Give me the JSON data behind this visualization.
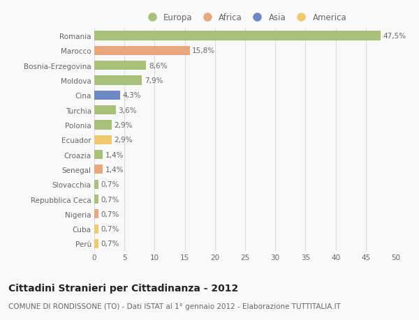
{
  "categories": [
    "Romania",
    "Marocco",
    "Bosnia-Erzegovina",
    "Moldova",
    "Cina",
    "Turchia",
    "Polonia",
    "Ecuador",
    "Croazia",
    "Senegal",
    "Slovacchia",
    "Repubblica Ceca",
    "Nigeria",
    "Cuba",
    "Perù"
  ],
  "values": [
    47.5,
    15.8,
    8.6,
    7.9,
    4.3,
    3.6,
    2.9,
    2.9,
    1.4,
    1.4,
    0.7,
    0.7,
    0.7,
    0.7,
    0.7
  ],
  "labels": [
    "47,5%",
    "15,8%",
    "8,6%",
    "7,9%",
    "4,3%",
    "3,6%",
    "2,9%",
    "2,9%",
    "1,4%",
    "1,4%",
    "0,7%",
    "0,7%",
    "0,7%",
    "0,7%",
    "0,7%"
  ],
  "colors": [
    "#a8c07a",
    "#e8a87c",
    "#a8c07a",
    "#a8c07a",
    "#6b88c4",
    "#a8c07a",
    "#a8c07a",
    "#f0c96e",
    "#a8c07a",
    "#e8a87c",
    "#a8c07a",
    "#a8c07a",
    "#e8a87c",
    "#f0c96e",
    "#f0c96e"
  ],
  "legend_labels": [
    "Europa",
    "Africa",
    "Asia",
    "America"
  ],
  "legend_colors": [
    "#a8c07a",
    "#e8a87c",
    "#6b88c4",
    "#f0c96e"
  ],
  "xlim": [
    0,
    50
  ],
  "xticks": [
    0,
    5,
    10,
    15,
    20,
    25,
    30,
    35,
    40,
    45,
    50
  ],
  "title": "Cittadini Stranieri per Cittadinanza - 2012",
  "subtitle": "COMUNE DI RONDISSONE (TO) - Dati ISTAT al 1° gennaio 2012 - Elaborazione TUTTITALIA.IT",
  "background_color": "#f9f9f9",
  "grid_color": "#d8d8d8",
  "text_color": "#666666",
  "title_color": "#222222",
  "label_fontsize": 7.5,
  "tick_fontsize": 7.5,
  "title_fontsize": 10,
  "subtitle_fontsize": 7.5
}
